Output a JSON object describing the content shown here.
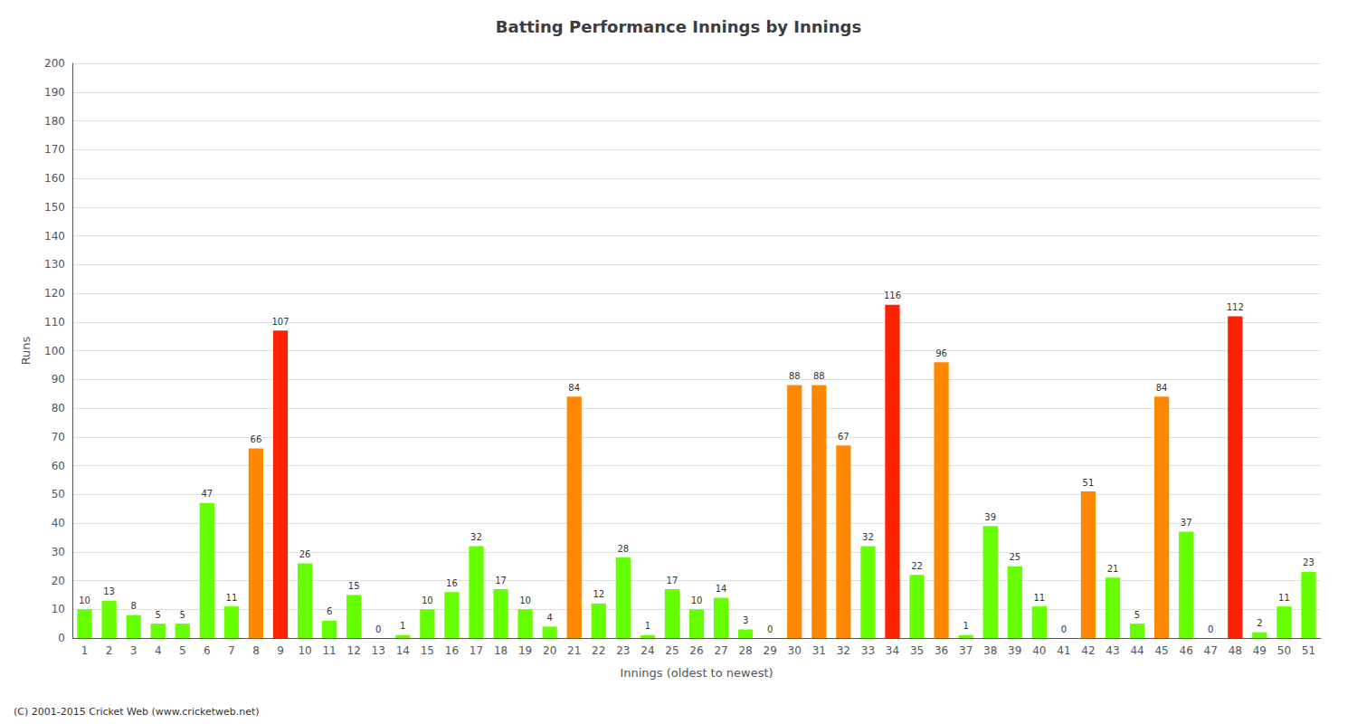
{
  "chart_data": {
    "type": "bar",
    "title": "Batting Performance Innings by Innings",
    "x_label": "Innings (oldest to newest)",
    "y_label": "Runs",
    "categories": [
      "1",
      "2",
      "3",
      "4",
      "5",
      "6",
      "7",
      "8",
      "9",
      "10",
      "11",
      "12",
      "13",
      "14",
      "15",
      "16",
      "17",
      "18",
      "19",
      "20",
      "21",
      "22",
      "23",
      "24",
      "25",
      "26",
      "27",
      "28",
      "29",
      "30",
      "31",
      "32",
      "33",
      "34",
      "35",
      "36",
      "37",
      "38",
      "39",
      "40",
      "41",
      "42",
      "43",
      "44",
      "45",
      "46",
      "47",
      "48",
      "49",
      "50",
      "51"
    ],
    "values": [
      10,
      13,
      8,
      5,
      5,
      47,
      11,
      66,
      107,
      26,
      6,
      15,
      0,
      1,
      10,
      16,
      32,
      17,
      10,
      4,
      84,
      12,
      28,
      1,
      17,
      10,
      14,
      3,
      0,
      88,
      88,
      67,
      32,
      116,
      22,
      96,
      1,
      39,
      25,
      11,
      0,
      51,
      21,
      5,
      84,
      37,
      0,
      112,
      2,
      11,
      23
    ],
    "colors": [
      "#66ff00",
      "#66ff00",
      "#66ff00",
      "#66ff00",
      "#66ff00",
      "#66ff00",
      "#66ff00",
      "#ff8800",
      "#ff2200",
      "#66ff00",
      "#66ff00",
      "#66ff00",
      "#66ff00",
      "#66ff00",
      "#66ff00",
      "#66ff00",
      "#66ff00",
      "#66ff00",
      "#66ff00",
      "#66ff00",
      "#ff8800",
      "#66ff00",
      "#66ff00",
      "#66ff00",
      "#66ff00",
      "#66ff00",
      "#66ff00",
      "#66ff00",
      "#66ff00",
      "#ff8800",
      "#ff8800",
      "#ff8800",
      "#66ff00",
      "#ff2200",
      "#66ff00",
      "#ff8800",
      "#66ff00",
      "#66ff00",
      "#66ff00",
      "#66ff00",
      "#66ff00",
      "#ff8800",
      "#66ff00",
      "#66ff00",
      "#ff8800",
      "#66ff00",
      "#66ff00",
      "#ff2200",
      "#66ff00",
      "#66ff00",
      "#66ff00"
    ],
    "ylim": [
      0,
      200
    ],
    "yticks": [
      0,
      10,
      20,
      30,
      40,
      50,
      60,
      70,
      80,
      90,
      100,
      110,
      120,
      130,
      140,
      150,
      160,
      170,
      180,
      190,
      200
    ],
    "grid": true,
    "data_labels": true,
    "annotations": [
      "(C) 2001-2015 Cricket Web (www.cricketweb.net)"
    ]
  }
}
